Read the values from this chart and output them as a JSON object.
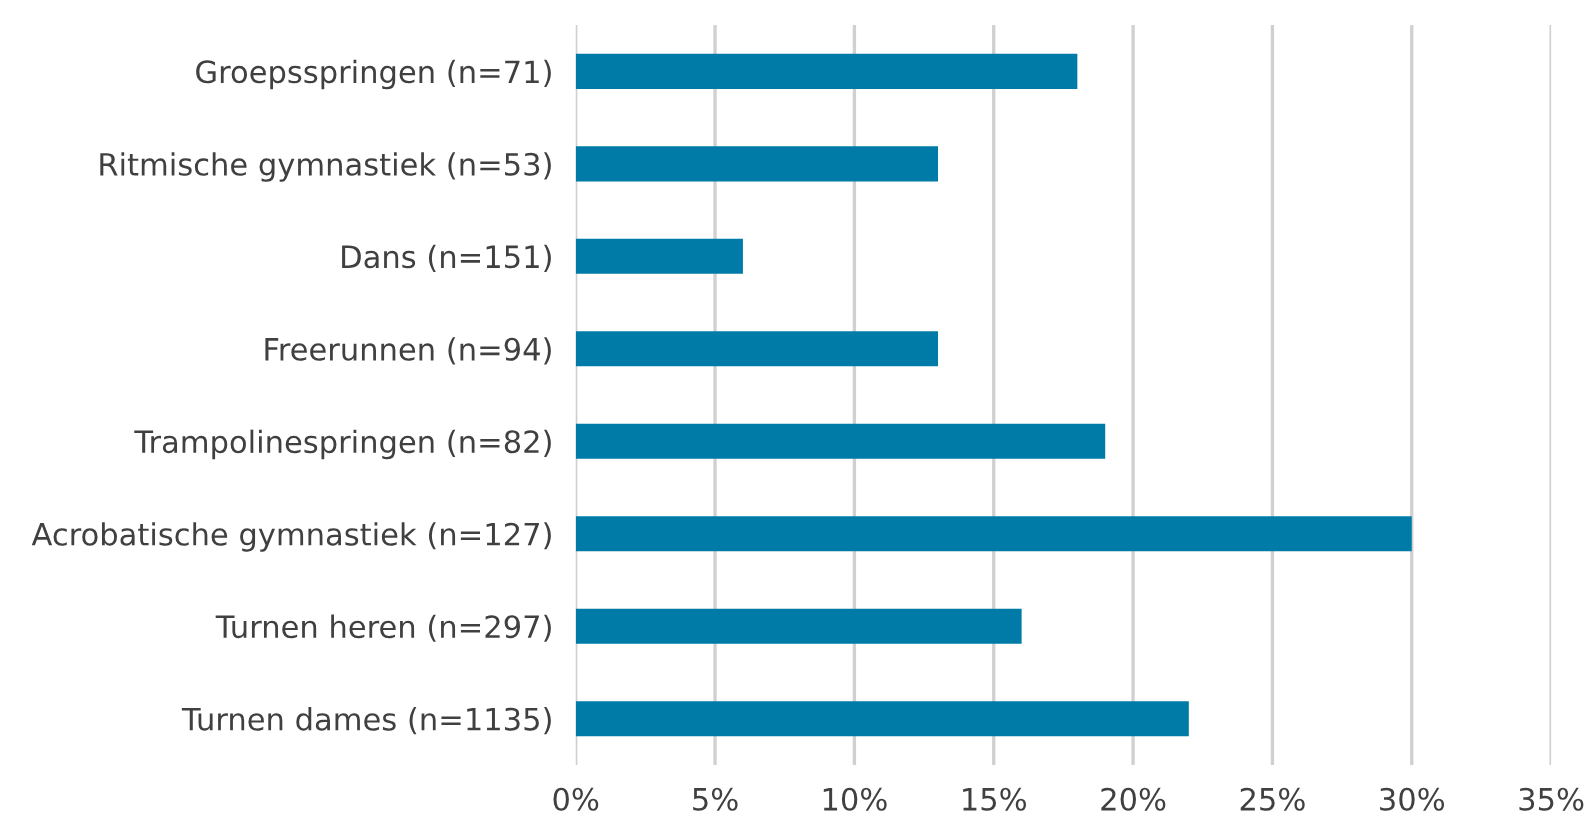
{
  "chart_data": {
    "type": "bar",
    "orientation": "horizontal",
    "categories": [
      "Groepsspringen (n=71)",
      "Ritmische gymnastiek (n=53)",
      "Dans (n=151)",
      "Freerunnen (n=94)",
      "Trampolinespringen (n=82)",
      "Acrobatische gymnastiek (n=127)",
      "Turnen heren (n=297)",
      "Turnen dames (n=1135)"
    ],
    "values": [
      18,
      13,
      6,
      13,
      19,
      30,
      16,
      22
    ],
    "color": "#007ba7",
    "xlim": [
      0,
      35
    ],
    "xticks": [
      {
        "value": 0,
        "label": "0%"
      },
      {
        "value": 5,
        "label": "5%"
      },
      {
        "value": 10,
        "label": "10%"
      },
      {
        "value": 15,
        "label": "15%"
      },
      {
        "value": 20,
        "label": "20%"
      },
      {
        "value": 25,
        "label": "25%"
      },
      {
        "value": 30,
        "label": "30%"
      },
      {
        "value": 35,
        "label": "35%"
      }
    ],
    "grid": "x",
    "legend": false
  }
}
